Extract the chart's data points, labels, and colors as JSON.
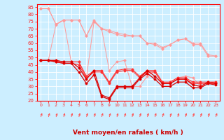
{
  "xlabel": "Vent moyen/en rafales ( km/h )",
  "x": [
    0,
    1,
    2,
    3,
    4,
    5,
    6,
    7,
    8,
    9,
    10,
    11,
    12,
    13,
    14,
    15,
    16,
    17,
    18,
    19,
    20,
    21,
    22,
    23
  ],
  "lines": [
    {
      "name": "light_pink_top1",
      "color": "#ff9999",
      "marker": "D",
      "markersize": 1.5,
      "linewidth": 0.7,
      "y": [
        84,
        84,
        73,
        76,
        76,
        76,
        65,
        75,
        70,
        68,
        66,
        65,
        65,
        65,
        60,
        59,
        56,
        59,
        62,
        63,
        59,
        59,
        51,
        51
      ]
    },
    {
      "name": "light_pink_top2",
      "color": "#ff9999",
      "marker": "D",
      "markersize": 1.5,
      "linewidth": 0.7,
      "y": [
        84,
        84,
        73,
        76,
        76,
        76,
        65,
        76,
        70,
        69,
        67,
        66,
        65,
        65,
        60,
        60,
        57,
        59,
        62,
        63,
        60,
        60,
        52,
        51
      ]
    },
    {
      "name": "light_pink_mid",
      "color": "#ff9999",
      "marker": "D",
      "markersize": 1.5,
      "linewidth": 0.7,
      "y": [
        48,
        48,
        73,
        76,
        47,
        47,
        36,
        75,
        70,
        41,
        47,
        48,
        30,
        30,
        37,
        41,
        32,
        33,
        36,
        37,
        36,
        30,
        33,
        33
      ]
    },
    {
      "name": "red_top1",
      "color": "#ff3333",
      "marker": "D",
      "markersize": 1.5,
      "linewidth": 0.8,
      "y": [
        48,
        48,
        48,
        47,
        47,
        47,
        37,
        41,
        41,
        33,
        41,
        42,
        42,
        37,
        41,
        41,
        33,
        33,
        36,
        36,
        33,
        33,
        33,
        33
      ]
    },
    {
      "name": "red_top2",
      "color": "#ff3333",
      "marker": "D",
      "markersize": 1.5,
      "linewidth": 0.8,
      "y": [
        48,
        48,
        47,
        46,
        46,
        45,
        36,
        40,
        40,
        32,
        40,
        41,
        41,
        36,
        40,
        40,
        32,
        32,
        35,
        35,
        32,
        32,
        32,
        32
      ]
    },
    {
      "name": "red_mid",
      "color": "#dd0000",
      "marker": "D",
      "markersize": 1.5,
      "linewidth": 0.9,
      "y": [
        48,
        48,
        48,
        47,
        47,
        43,
        35,
        41,
        24,
        22,
        30,
        30,
        30,
        36,
        41,
        37,
        32,
        32,
        35,
        35,
        31,
        30,
        33,
        32
      ]
    },
    {
      "name": "red_bottom",
      "color": "#dd0000",
      "marker": "D",
      "markersize": 1.5,
      "linewidth": 0.9,
      "y": [
        48,
        48,
        47,
        46,
        46,
        40,
        32,
        38,
        23,
        21,
        29,
        29,
        29,
        35,
        39,
        35,
        30,
        30,
        33,
        33,
        29,
        29,
        32,
        31
      ]
    }
  ],
  "ylim": [
    20,
    87
  ],
  "yticks": [
    20,
    25,
    30,
    35,
    40,
    45,
    50,
    55,
    60,
    65,
    70,
    75,
    80,
    85
  ],
  "xticks": [
    0,
    1,
    2,
    3,
    4,
    5,
    6,
    7,
    8,
    9,
    10,
    11,
    12,
    13,
    14,
    15,
    16,
    17,
    18,
    19,
    20,
    21,
    22,
    23
  ],
  "bg_color": "#cceeff",
  "grid_color": "#ffffff",
  "axis_color": "#ff0000",
  "tick_label_color": "#ff2222",
  "label_color": "#cc0000",
  "arrow_color": "#ff5555"
}
